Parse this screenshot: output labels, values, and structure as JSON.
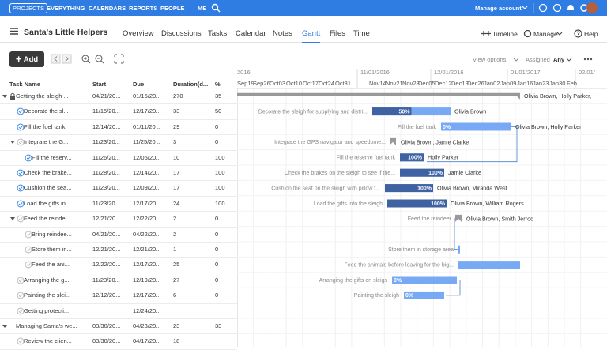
{
  "nav": {
    "brand": "PROJECTS",
    "links": [
      "EVERYTHING",
      "CALENDARS",
      "REPORTS",
      "PEOPLE"
    ],
    "me": "ME",
    "account": "Manage account"
  },
  "project": {
    "title": "Santa's Little Helpers",
    "tabs": [
      "Overview",
      "Discussions",
      "Tasks",
      "Calendar",
      "Notes",
      "Gantt",
      "Files",
      "Time"
    ],
    "active_tab": "Gantt",
    "actions": [
      "Timeline",
      "Manage",
      "Help"
    ]
  },
  "toolbar": {
    "add": "Add",
    "view_options": "View options",
    "assigned": "Assigned",
    "assigned_value": "Any"
  },
  "table": {
    "columns": [
      "Task Name",
      "Start",
      "Due",
      "Duration(d...",
      "%"
    ],
    "rows": [
      [
        "Getting the sleigh ...",
        "04/21/20...",
        "01/15/20...",
        "270",
        "35"
      ],
      [
        "Decorate the sl...",
        "11/15/20...",
        "12/17/20...",
        "33",
        "50"
      ],
      [
        "Fill the fuel tank",
        "12/14/20...",
        "01/11/20...",
        "29",
        "0"
      ],
      [
        "Integrate the G...",
        "11/23/20...",
        "11/25/20...",
        "3",
        "0"
      ],
      [
        "Fill the reserv...",
        "11/26/20...",
        "12/05/20...",
        "10",
        "100"
      ],
      [
        "Check the brake...",
        "11/28/20...",
        "12/14/20...",
        "17",
        "100"
      ],
      [
        "Cushion the sea...",
        "11/23/20...",
        "12/09/20...",
        "17",
        "100"
      ],
      [
        "Load the gifts in...",
        "11/23/20...",
        "12/17/20...",
        "24",
        "100"
      ],
      [
        "Feed the reinde...",
        "12/21/20...",
        "12/22/20...",
        "2",
        "0"
      ],
      [
        "Bring reindee...",
        "04/21/20...",
        "04/22/20...",
        "2",
        "0"
      ],
      [
        "Store them in...",
        "12/21/20...",
        "12/21/20...",
        "1",
        "0"
      ],
      [
        "Feed the ani...",
        "12/22/20...",
        "12/17/20...",
        "25",
        "0"
      ],
      [
        "Arranging the g...",
        "11/23/20...",
        "12/19/20...",
        "27",
        "0"
      ],
      [
        "Painting the slei...",
        "12/12/20...",
        "12/17/20...",
        "6",
        "0"
      ],
      [
        "Getting protecti...",
        "",
        "12/24/20...",
        "",
        ""
      ],
      [
        "Managing Santa's we...",
        "03/30/20...",
        "04/23/20...",
        "23",
        "33"
      ],
      [
        "Review the clien...",
        "03/30/20...",
        "04/17/20...",
        "18",
        ""
      ]
    ]
  },
  "gantt": {
    "months": [
      "2016",
      "11/01/2016",
      "12/01/2016",
      "01/01/2017",
      "02/01/"
    ],
    "weeks": [
      "Sep19",
      "Sep26",
      "Oct03",
      "Oct10",
      "Oct17",
      "Oct24",
      "Oct31",
      "Nov14",
      "Nov21",
      "Nov28",
      "Dec05",
      "Dec12",
      "Dec19",
      "Dec26",
      "Jan02",
      "Jan09",
      "Jan16",
      "Jan23",
      "Jan30",
      "Feb"
    ],
    "bars": [
      {
        "assignees": "Olivia Brown, Holly Parker,"
      },
      {
        "task": "Decorate the sleigh for supplying and distri...",
        "progress": "50%",
        "assignees": "Olivia Brown"
      },
      {
        "task": "Fill the fuel tank",
        "progress": "0%",
        "assignees": "Olivia Brown, Holly Parker"
      },
      {
        "task": "Integrate the GPS navigator and speedome...",
        "assignees": "Olivia Brown, Jamie Clarke"
      },
      {
        "task": "Fill the reserve fuel tank",
        "progress": "100%",
        "assignees": "Holly Parker"
      },
      {
        "task": "Check the brakes on the sleigh to see if the...",
        "progress": "100%",
        "assignees": "Jamie Clarke"
      },
      {
        "task": "Cushion the seat on the sleigh with pillow f...",
        "progress": "100%",
        "assignees": "Olivia Brown, Miranda West"
      },
      {
        "task": "Load the gifts into the sleigh",
        "progress": "100%",
        "assignees": "Olivia Brown, William Rogers"
      },
      {
        "task": "Feed the reindeer",
        "assignees": "Olivia Brown, Smith Jerrod"
      },
      {
        "task": "Store them in storage area"
      },
      {
        "task": "Feed the animals before leaving for the big..."
      },
      {
        "task": "Arranging the gifts on sleigs",
        "progress": "0%"
      },
      {
        "task": "Painting the sleigh",
        "progress": "0%"
      }
    ]
  }
}
